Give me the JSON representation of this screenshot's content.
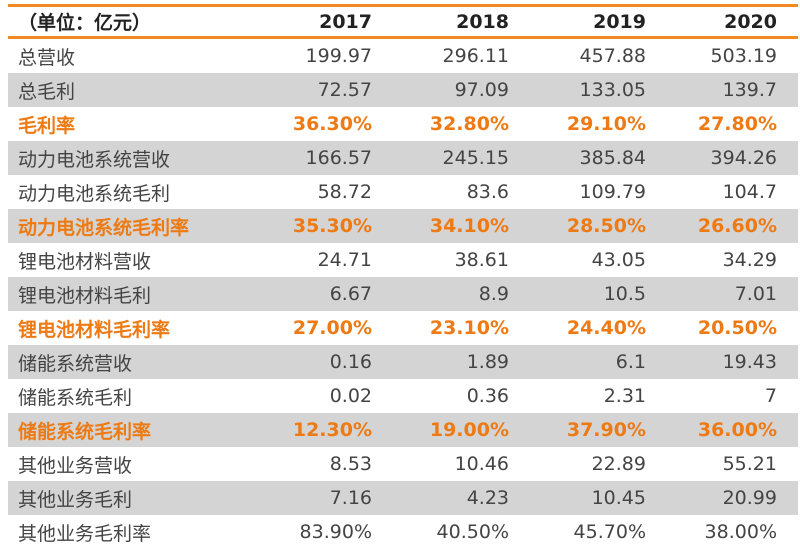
{
  "header": {
    "unit": "（单位：亿元）",
    "years": [
      "2017",
      "2018",
      "2019",
      "2020"
    ]
  },
  "rows": [
    {
      "label": "总营收",
      "values": [
        "199.97",
        "296.11",
        "457.88",
        "503.19"
      ],
      "rate": false
    },
    {
      "label": "总毛利",
      "values": [
        "72.57",
        "97.09",
        "133.05",
        "139.7"
      ],
      "rate": false
    },
    {
      "label": "毛利率",
      "values": [
        "36.30%",
        "32.80%",
        "29.10%",
        "27.80%"
      ],
      "rate": true
    },
    {
      "label": "动力电池系统营收",
      "values": [
        "166.57",
        "245.15",
        "385.84",
        "394.26"
      ],
      "rate": false
    },
    {
      "label": "动力电池系统毛利",
      "values": [
        "58.72",
        "83.6",
        "109.79",
        "104.7"
      ],
      "rate": false
    },
    {
      "label": "动力电池系统毛利率",
      "values": [
        "35.30%",
        "34.10%",
        "28.50%",
        "26.60%"
      ],
      "rate": true
    },
    {
      "label": "锂电池材料营收",
      "values": [
        "24.71",
        "38.61",
        "43.05",
        "34.29"
      ],
      "rate": false
    },
    {
      "label": "锂电池材料毛利",
      "values": [
        "6.67",
        "8.9",
        "10.5",
        "7.01"
      ],
      "rate": false
    },
    {
      "label": "锂电池材料毛利率",
      "values": [
        "27.00%",
        "23.10%",
        "24.40%",
        "20.50%"
      ],
      "rate": true
    },
    {
      "label": "储能系统营收",
      "values": [
        "0.16",
        "1.89",
        "6.1",
        "19.43"
      ],
      "rate": false
    },
    {
      "label": "储能系统毛利",
      "values": [
        "0.02",
        "0.36",
        "2.31",
        "7"
      ],
      "rate": false
    },
    {
      "label": "储能系统毛利率",
      "values": [
        "12.30%",
        "19.00%",
        "37.90%",
        "36.00%"
      ],
      "rate": true
    },
    {
      "label": "其他业务营收",
      "values": [
        "8.53",
        "10.46",
        "22.89",
        "55.21"
      ],
      "rate": false
    },
    {
      "label": "其他业务毛利",
      "values": [
        "7.16",
        "4.23",
        "10.45",
        "20.99"
      ],
      "rate": false
    },
    {
      "label": "其他业务毛利率",
      "values": [
        "83.90%",
        "40.50%",
        "45.70%",
        "38.00%"
      ],
      "rate": false
    }
  ],
  "colors": {
    "accent": "#ee7a14",
    "stripe": "#d4d4d4"
  }
}
